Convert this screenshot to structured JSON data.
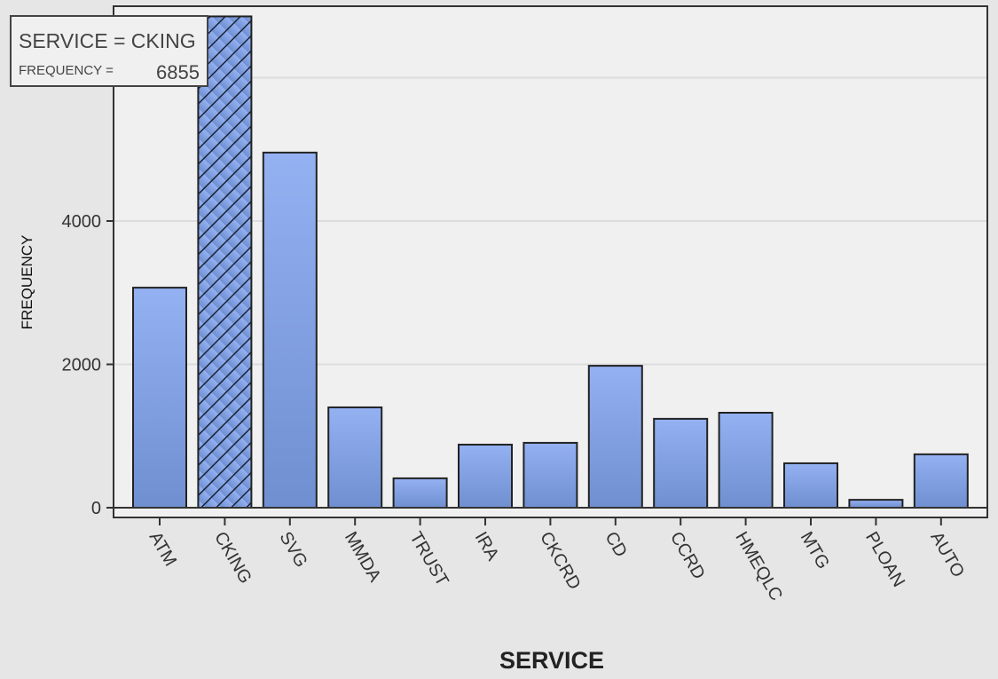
{
  "chart_data": {
    "type": "bar",
    "xlabel": "SERVICE",
    "ylabel": "FREQUENCY",
    "categories": [
      "ATM",
      "CKING",
      "SVG",
      "MMDA",
      "TRUST",
      "IRA",
      "CKCRD",
      "CD",
      "CCRD",
      "HMEQLC",
      "MTG",
      "PLOAN",
      "AUTO"
    ],
    "values": [
      3070,
      6855,
      4955,
      1400,
      410,
      880,
      905,
      1980,
      1240,
      1325,
      620,
      110,
      745
    ],
    "ylim": [
      0,
      7000
    ],
    "yticks": [
      0,
      2000,
      4000
    ],
    "ytick_labels": [
      "0",
      "2000",
      "4000"
    ],
    "grid": true,
    "highlighted": "CKING",
    "bar_color": "#8eaaea"
  },
  "tooltip": {
    "service_line": "SERVICE = CKING",
    "frequency_label": "FREQUENCY =",
    "frequency_value": "6855"
  }
}
